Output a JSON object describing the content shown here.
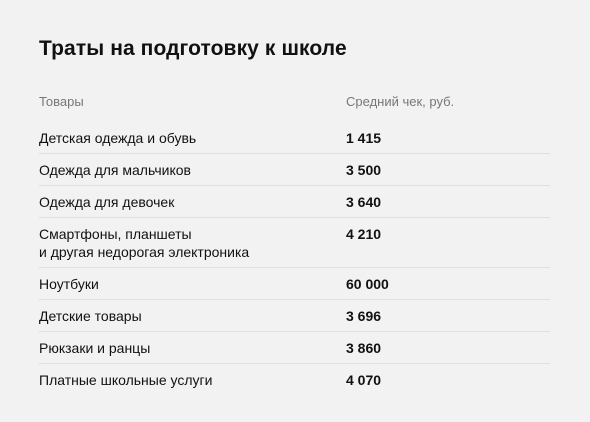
{
  "chart_data": {
    "type": "table",
    "title": "Траты на подготовку к школе",
    "columns": [
      "Товары",
      "Средний чек, руб."
    ],
    "rows": [
      {
        "name": [
          "Детская одежда и обувь"
        ],
        "value": "1 415"
      },
      {
        "name": [
          "Одежда для мальчиков"
        ],
        "value": "3 500"
      },
      {
        "name": [
          "Одежда для девочек"
        ],
        "value": "3 640"
      },
      {
        "name": [
          "Смартфоны, планшеты",
          "и другая недорогая электроника"
        ],
        "value": "4 210"
      },
      {
        "name": [
          "Ноутбуки"
        ],
        "value": "60 000"
      },
      {
        "name": [
          "Детские товары"
        ],
        "value": "3 696"
      },
      {
        "name": [
          "Рюкзаки и ранцы"
        ],
        "value": "3 860"
      },
      {
        "name": [
          "Платные школьные услуги"
        ],
        "value": "4 070"
      }
    ]
  }
}
